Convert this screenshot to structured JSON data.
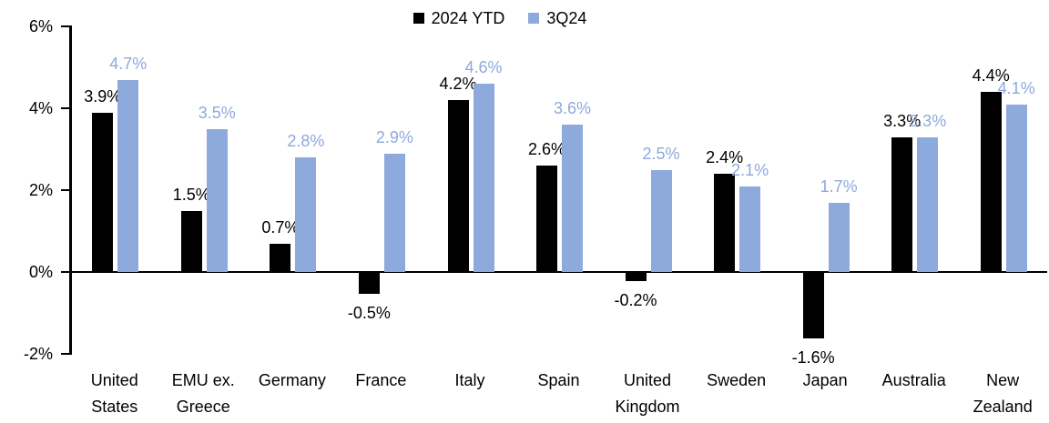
{
  "chart_data": {
    "type": "bar",
    "title": "",
    "xlabel": "",
    "ylabel": "",
    "value_suffix": "%",
    "data_labels": true,
    "grid": false,
    "legend_position": "top-center",
    "ylim": [
      -2,
      6
    ],
    "yticks": [
      "6%",
      "4%",
      "2%",
      "0%",
      "-2%"
    ],
    "ytick_values": [
      6,
      4,
      2,
      0,
      -2
    ],
    "categories": [
      "United States",
      "EMU ex. Greece",
      "Germany",
      "France",
      "Italy",
      "Spain",
      "United Kingdom",
      "Sweden",
      "Japan",
      "Australia",
      "New Zealand"
    ],
    "category_lines": [
      [
        "United",
        "States"
      ],
      [
        "EMU ex.",
        "Greece"
      ],
      [
        "Germany"
      ],
      [
        "France"
      ],
      [
        "Italy"
      ],
      [
        "Spain"
      ],
      [
        "United",
        "Kingdom"
      ],
      [
        "Sweden"
      ],
      [
        "Japan"
      ],
      [
        "Australia"
      ],
      [
        "New",
        "Zealand"
      ]
    ],
    "series": [
      {
        "name": "2024 YTD",
        "color": "#000000",
        "label_color": "#000000",
        "values": [
          3.9,
          1.5,
          0.7,
          -0.5,
          4.2,
          2.6,
          -0.2,
          2.4,
          -1.6,
          3.3,
          4.4
        ]
      },
      {
        "name": "3Q24",
        "color": "#8EA9DB",
        "label_color": "#8EA9DB",
        "values": [
          4.7,
          3.5,
          2.8,
          2.9,
          4.6,
          3.6,
          2.5,
          2.1,
          1.7,
          3.3,
          4.1
        ]
      }
    ]
  }
}
